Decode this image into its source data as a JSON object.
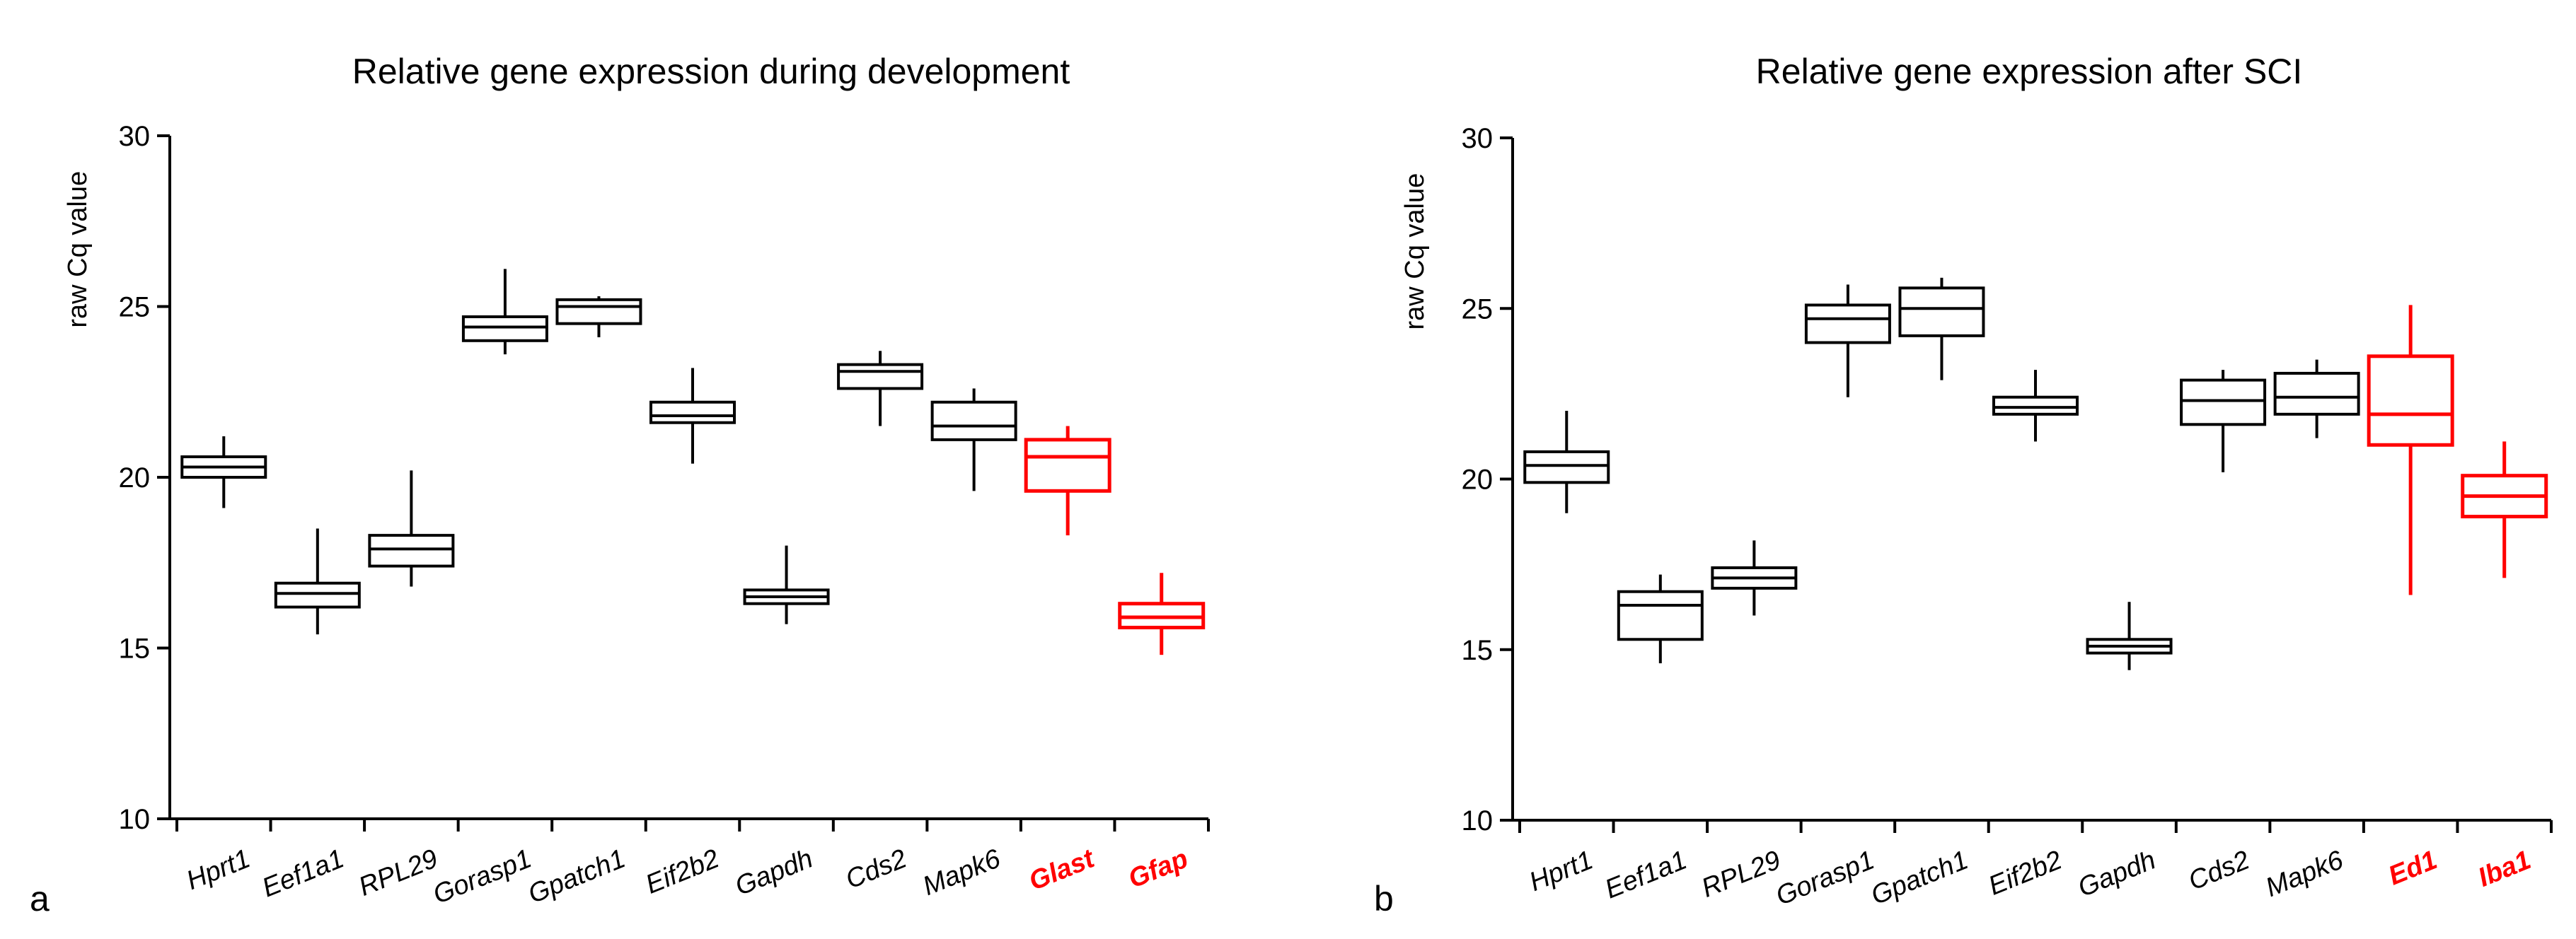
{
  "colors": {
    "normal": "#000000",
    "highlight": "#ff0000"
  },
  "chart_data": [
    {
      "type": "box",
      "panel_label": "a",
      "title": "Relative gene expression during development",
      "ylabel": "raw Cq value",
      "ylim": [
        10,
        30
      ],
      "yticks": [
        10,
        15,
        20,
        25,
        30
      ],
      "categories": [
        "Hprt1",
        "Eef1a1",
        "RPL29",
        "Gorasp1",
        "Gpatch1",
        "Eif2b2",
        "Gapdh",
        "Cds2",
        "Mapk6",
        "Glast",
        "Gfap"
      ],
      "highlighted": [
        "Glast",
        "Gfap"
      ],
      "boxes": [
        {
          "min": 19.1,
          "q1": 20.0,
          "median": 20.3,
          "q3": 20.6,
          "max": 21.2
        },
        {
          "min": 15.4,
          "q1": 16.2,
          "median": 16.6,
          "q3": 16.9,
          "max": 18.5
        },
        {
          "min": 16.8,
          "q1": 17.4,
          "median": 17.9,
          "q3": 18.3,
          "max": 20.2
        },
        {
          "min": 23.6,
          "q1": 24.0,
          "median": 24.4,
          "q3": 24.7,
          "max": 26.1
        },
        {
          "min": 24.1,
          "q1": 24.5,
          "median": 25.0,
          "q3": 25.2,
          "max": 25.3
        },
        {
          "min": 20.4,
          "q1": 21.6,
          "median": 21.8,
          "q3": 22.2,
          "max": 23.2
        },
        {
          "min": 15.7,
          "q1": 16.3,
          "median": 16.5,
          "q3": 16.7,
          "max": 18.0
        },
        {
          "min": 21.5,
          "q1": 22.6,
          "median": 23.1,
          "q3": 23.3,
          "max": 23.7
        },
        {
          "min": 19.6,
          "q1": 21.1,
          "median": 21.5,
          "q3": 22.2,
          "max": 22.6
        },
        {
          "min": 18.3,
          "q1": 19.6,
          "median": 20.6,
          "q3": 21.1,
          "max": 21.5
        },
        {
          "min": 14.8,
          "q1": 15.6,
          "median": 15.9,
          "q3": 16.3,
          "max": 17.2
        }
      ]
    },
    {
      "type": "box",
      "panel_label": "b",
      "title": "Relative gene expression after SCI",
      "ylabel": "raw Cq value",
      "ylim": [
        10,
        30
      ],
      "yticks": [
        10,
        15,
        20,
        25,
        30
      ],
      "categories": [
        "Hprt1",
        "Eef1a1",
        "RPL29",
        "Gorasp1",
        "Gpatch1",
        "Eif2b2",
        "Gapdh",
        "Cds2",
        "Mapk6",
        "Ed1",
        "Iba1"
      ],
      "highlighted": [
        "Ed1",
        "Iba1"
      ],
      "boxes": [
        {
          "min": 19.0,
          "q1": 19.9,
          "median": 20.4,
          "q3": 20.8,
          "max": 22.0
        },
        {
          "min": 14.6,
          "q1": 15.3,
          "median": 16.3,
          "q3": 16.7,
          "max": 17.2
        },
        {
          "min": 16.0,
          "q1": 16.8,
          "median": 17.1,
          "q3": 17.4,
          "max": 18.2
        },
        {
          "min": 22.4,
          "q1": 24.0,
          "median": 24.7,
          "q3": 25.1,
          "max": 25.7
        },
        {
          "min": 22.9,
          "q1": 24.2,
          "median": 25.0,
          "q3": 25.6,
          "max": 25.9
        },
        {
          "min": 21.1,
          "q1": 21.9,
          "median": 22.1,
          "q3": 22.4,
          "max": 23.2
        },
        {
          "min": 14.4,
          "q1": 14.9,
          "median": 15.1,
          "q3": 15.3,
          "max": 16.4
        },
        {
          "min": 20.2,
          "q1": 21.6,
          "median": 22.3,
          "q3": 22.9,
          "max": 23.2
        },
        {
          "min": 21.2,
          "q1": 21.9,
          "median": 22.4,
          "q3": 23.1,
          "max": 23.5
        },
        {
          "min": 16.6,
          "q1": 21.0,
          "median": 21.9,
          "q3": 23.6,
          "max": 25.1
        },
        {
          "min": 17.1,
          "q1": 18.9,
          "median": 19.5,
          "q3": 20.1,
          "max": 21.1
        }
      ]
    }
  ]
}
